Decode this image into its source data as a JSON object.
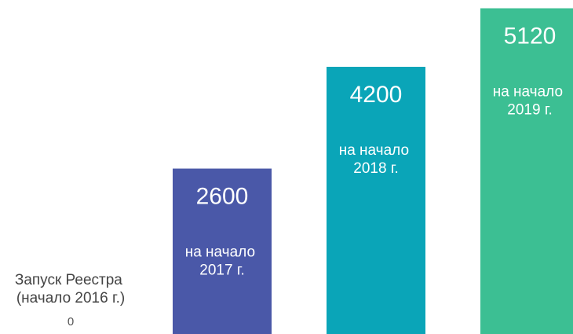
{
  "chart_data": {
    "type": "bar",
    "categories": [
      "Запуск Реестра (начало 2016 г.)",
      "на начало 2017 г.",
      "на начало 2018 г.",
      "на начало 2019 г."
    ],
    "values": [
      0,
      2600,
      4200,
      5120
    ],
    "colors": [
      "#4a58a8",
      "#4a58a8",
      "#0aa5b8",
      "#3cbf93"
    ],
    "ylim": [
      0,
      5250
    ]
  }
}
